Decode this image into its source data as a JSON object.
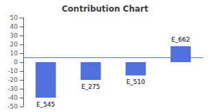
{
  "chart_data": {
    "type": "bar",
    "title": "Contribution Chart",
    "categories": [
      "E_545",
      "E_275",
      "E_510",
      "E_662"
    ],
    "values": [
      -40,
      -20,
      -15,
      18
    ],
    "hline": 5,
    "ylim": [
      -50,
      50
    ],
    "yticks": [
      -50,
      -40,
      -30,
      -20,
      -10,
      0,
      10,
      20,
      30,
      40,
      50
    ],
    "grid": false,
    "tick_labels": "y"
  }
}
